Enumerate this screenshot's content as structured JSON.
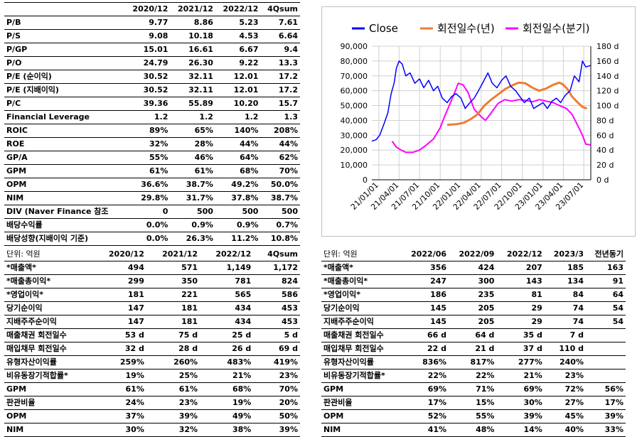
{
  "valuation": {
    "headers": [
      "",
      "2020/12",
      "2021/12",
      "2022/12",
      "4Qsum"
    ],
    "rows": [
      [
        "P/B",
        "9.77",
        "8.86",
        "5.23",
        "7.61"
      ],
      [
        "P/S",
        "9.08",
        "10.18",
        "4.53",
        "6.64"
      ],
      [
        "P/GP",
        "15.01",
        "16.61",
        "6.67",
        "9.4"
      ],
      [
        "P/O",
        "24.79",
        "26.30",
        "9.22",
        "13.3"
      ],
      [
        "P/E (순이익)",
        "30.52",
        "32.11",
        "12.01",
        "17.2"
      ],
      [
        "P/E (지배이익)",
        "30.52",
        "32.11",
        "12.01",
        "17.2"
      ],
      [
        "P/C",
        "39.36",
        "55.89",
        "10.20",
        "15.7"
      ],
      [
        "Financial Leverage",
        "1.2",
        "1.2",
        "1.2",
        "1.3"
      ],
      [
        "ROIC",
        "89%",
        "65%",
        "140%",
        "208%"
      ],
      [
        "ROE",
        "32%",
        "28%",
        "44%",
        "44%"
      ],
      [
        "GP/A",
        "55%",
        "46%",
        "64%",
        "62%"
      ],
      [
        "GPM",
        "61%",
        "61%",
        "68%",
        "70%"
      ],
      [
        "OPM",
        "36.6%",
        "38.7%",
        "49.2%",
        "50.0%"
      ],
      [
        "NIM",
        "29.8%",
        "31.7%",
        "37.8%",
        "38.7%"
      ],
      [
        "DIV (Naver Finance 참조",
        "0",
        "500",
        "500",
        "500"
      ],
      [
        "배당수익률",
        "0.0%",
        "0.9%",
        "0.9%",
        "0.7%"
      ],
      [
        "배당성향(지배이익 기준)",
        "0.0%",
        "26.3%",
        "11.2%",
        "10.8%"
      ]
    ]
  },
  "annual": {
    "headers": [
      "단위: 억원",
      "2020/12",
      "2021/12",
      "2022/12",
      "4Qsum"
    ],
    "rows": [
      [
        "*매출액*",
        "494",
        "571",
        "1,149",
        "1,172"
      ],
      [
        "*매출총이익*",
        "299",
        "350",
        "781",
        "824"
      ],
      [
        "*영업이익*",
        "181",
        "221",
        "565",
        "586"
      ],
      [
        "당기순이익",
        "147",
        "181",
        "434",
        "453"
      ],
      [
        "지배주주순이익",
        "147",
        "181",
        "434",
        "453"
      ],
      [
        "매출채권 회전일수",
        "53 d",
        "75 d",
        "25 d",
        "5 d"
      ],
      [
        "매입채무 회전일수",
        "32 d",
        "28 d",
        "26 d",
        "69 d"
      ],
      [
        "유형자산이익률",
        "259%",
        "260%",
        "483%",
        "419%"
      ],
      [
        "비유동장기적합률*",
        "19%",
        "25%",
        "21%",
        "23%"
      ],
      [
        "GPM",
        "61%",
        "61%",
        "68%",
        "70%"
      ],
      [
        "판관비율",
        "24%",
        "23%",
        "19%",
        "20%"
      ],
      [
        "OPM",
        "37%",
        "39%",
        "49%",
        "50%"
      ],
      [
        "NIM",
        "30%",
        "32%",
        "38%",
        "39%"
      ]
    ]
  },
  "quarterly": {
    "headers": [
      "단위: 억원",
      "2022/06",
      "2022/09",
      "2022/12",
      "2023/3",
      "전년동기"
    ],
    "rows": [
      [
        "*매출액*",
        "356",
        "424",
        "207",
        "185",
        "163"
      ],
      [
        "*매출총이익*",
        "247",
        "300",
        "143",
        "134",
        "91"
      ],
      [
        "*영업이익*",
        "186",
        "235",
        "81",
        "84",
        "64"
      ],
      [
        "당기순이익",
        "145",
        "205",
        "29",
        "74",
        "54"
      ],
      [
        "지배주주순이익",
        "145",
        "205",
        "29",
        "74",
        "54"
      ],
      [
        "매출채권 회전일수",
        "66 d",
        "64 d",
        "35 d",
        "7 d",
        ""
      ],
      [
        "매입채무 회전일수",
        "22 d",
        "21 d",
        "37 d",
        "110 d",
        ""
      ],
      [
        "유형자산이익률",
        "836%",
        "817%",
        "277%",
        "240%",
        ""
      ],
      [
        "비유동장기적합률*",
        "22%",
        "22%",
        "21%",
        "23%",
        ""
      ],
      [
        "GPM",
        "69%",
        "71%",
        "69%",
        "72%",
        "56%"
      ],
      [
        "판관비율",
        "17%",
        "15%",
        "30%",
        "27%",
        "17%"
      ],
      [
        "OPM",
        "52%",
        "55%",
        "39%",
        "45%",
        "39%"
      ],
      [
        "NIM",
        "41%",
        "48%",
        "14%",
        "40%",
        "33%"
      ]
    ]
  },
  "chart_data": {
    "type": "line",
    "legend_position": "top",
    "series": [
      {
        "name": "Close",
        "axis": "left",
        "color": "#0000ff"
      },
      {
        "name": "회전일수(년)",
        "axis": "right",
        "color": "#ed7d31"
      },
      {
        "name": "회전일수(분기)",
        "axis": "right",
        "color": "#ff00ff"
      }
    ],
    "x_ticks": [
      "21/01/01",
      "21/04/01",
      "21/07/01",
      "21/10/01",
      "22/01/01",
      "22/04/01",
      "22/07/01",
      "22/10/01",
      "23/01/01",
      "23/04/01",
      "23/07/01"
    ],
    "x_range": [
      "2020-12-01",
      "2023-08-01"
    ],
    "left_axis": {
      "min": 0,
      "max": 90000,
      "ticks": [
        "0",
        "10,000",
        "20,000",
        "30,000",
        "40,000",
        "50,000",
        "60,000",
        "70,000",
        "80,000",
        "90,000"
      ]
    },
    "right_axis": {
      "min": 0,
      "max": 180,
      "ticks": [
        "0 d",
        "20 d",
        "40 d",
        "60 d",
        "80 d",
        "100 d",
        "120 d",
        "140 d",
        "160 d",
        "180 d"
      ]
    },
    "close_points": [
      [
        "2020-12-01",
        26000
      ],
      [
        "2020-12-20",
        27000
      ],
      [
        "2021-01-05",
        30000
      ],
      [
        "2021-01-25",
        38000
      ],
      [
        "2021-02-10",
        45000
      ],
      [
        "2021-02-25",
        58000
      ],
      [
        "2021-03-10",
        65000
      ],
      [
        "2021-03-20",
        75000
      ],
      [
        "2021-04-01",
        80000
      ],
      [
        "2021-04-15",
        78000
      ],
      [
        "2021-05-01",
        70000
      ],
      [
        "2021-05-20",
        72000
      ],
      [
        "2021-06-10",
        65000
      ],
      [
        "2021-07-01",
        68000
      ],
      [
        "2021-07-20",
        62000
      ],
      [
        "2021-08-10",
        67000
      ],
      [
        "2021-09-01",
        60000
      ],
      [
        "2021-09-20",
        63000
      ],
      [
        "2021-10-10",
        55000
      ],
      [
        "2021-11-01",
        52000
      ],
      [
        "2021-11-20",
        56000
      ],
      [
        "2021-12-10",
        58000
      ],
      [
        "2022-01-01",
        55000
      ],
      [
        "2022-01-20",
        48000
      ],
      [
        "2022-02-10",
        52000
      ],
      [
        "2022-03-01",
        55000
      ],
      [
        "2022-03-20",
        60000
      ],
      [
        "2022-04-10",
        66000
      ],
      [
        "2022-05-01",
        72000
      ],
      [
        "2022-05-20",
        65000
      ],
      [
        "2022-06-10",
        62000
      ],
      [
        "2022-07-01",
        67000
      ],
      [
        "2022-07-20",
        70000
      ],
      [
        "2022-08-10",
        63000
      ],
      [
        "2022-09-01",
        60000
      ],
      [
        "2022-09-20",
        56000
      ],
      [
        "2022-10-10",
        52000
      ],
      [
        "2022-11-01",
        55000
      ],
      [
        "2022-11-20",
        48000
      ],
      [
        "2022-12-10",
        50000
      ],
      [
        "2023-01-01",
        52000
      ],
      [
        "2023-01-20",
        48000
      ],
      [
        "2023-02-10",
        53000
      ],
      [
        "2023-03-01",
        55000
      ],
      [
        "2023-03-20",
        52000
      ],
      [
        "2023-04-10",
        57000
      ],
      [
        "2023-05-01",
        60000
      ],
      [
        "2023-05-20",
        70000
      ],
      [
        "2023-06-10",
        66000
      ],
      [
        "2023-06-25",
        80000
      ],
      [
        "2023-07-10",
        76000
      ],
      [
        "2023-07-31",
        77000
      ]
    ],
    "annual_days_points": [
      [
        "2021-11-01",
        74
      ],
      [
        "2021-12-15",
        75
      ],
      [
        "2022-01-15",
        77
      ],
      [
        "2022-02-15",
        82
      ],
      [
        "2022-03-15",
        88
      ],
      [
        "2022-04-15",
        100
      ],
      [
        "2022-05-15",
        108
      ],
      [
        "2022-06-15",
        115
      ],
      [
        "2022-07-15",
        122
      ],
      [
        "2022-08-15",
        127
      ],
      [
        "2022-09-15",
        131
      ],
      [
        "2022-10-15",
        130
      ],
      [
        "2022-11-15",
        124
      ],
      [
        "2022-12-15",
        120
      ],
      [
        "2023-01-15",
        123
      ],
      [
        "2023-02-15",
        128
      ],
      [
        "2023-03-15",
        131
      ],
      [
        "2023-04-01",
        128
      ],
      [
        "2023-04-20",
        122
      ],
      [
        "2023-05-10",
        112
      ],
      [
        "2023-06-01",
        105
      ],
      [
        "2023-06-25",
        98
      ],
      [
        "2023-07-15",
        96
      ]
    ],
    "quarter_days_points": [
      [
        "2021-03-01",
        52
      ],
      [
        "2021-03-20",
        44
      ],
      [
        "2021-04-10",
        40
      ],
      [
        "2021-05-01",
        37
      ],
      [
        "2021-06-01",
        37
      ],
      [
        "2021-07-01",
        40
      ],
      [
        "2021-08-01",
        47
      ],
      [
        "2021-09-01",
        55
      ],
      [
        "2021-10-01",
        70
      ],
      [
        "2021-10-20",
        85
      ],
      [
        "2021-11-10",
        100
      ],
      [
        "2021-12-01",
        115
      ],
      [
        "2021-12-20",
        130
      ],
      [
        "2022-01-10",
        128
      ],
      [
        "2022-02-01",
        118
      ],
      [
        "2022-03-01",
        95
      ],
      [
        "2022-04-01",
        85
      ],
      [
        "2022-04-20",
        80
      ],
      [
        "2022-05-15",
        90
      ],
      [
        "2022-06-15",
        103
      ],
      [
        "2022-07-15",
        108
      ],
      [
        "2022-08-15",
        106
      ],
      [
        "2022-09-15",
        108
      ],
      [
        "2022-10-15",
        107
      ],
      [
        "2022-11-15",
        105
      ],
      [
        "2022-12-15",
        108
      ],
      [
        "2023-01-15",
        106
      ],
      [
        "2023-02-15",
        104
      ],
      [
        "2023-03-15",
        100
      ],
      [
        "2023-04-15",
        96
      ],
      [
        "2023-05-10",
        88
      ],
      [
        "2023-06-01",
        75
      ],
      [
        "2023-06-25",
        60
      ],
      [
        "2023-07-10",
        48
      ],
      [
        "2023-07-31",
        47
      ]
    ]
  }
}
